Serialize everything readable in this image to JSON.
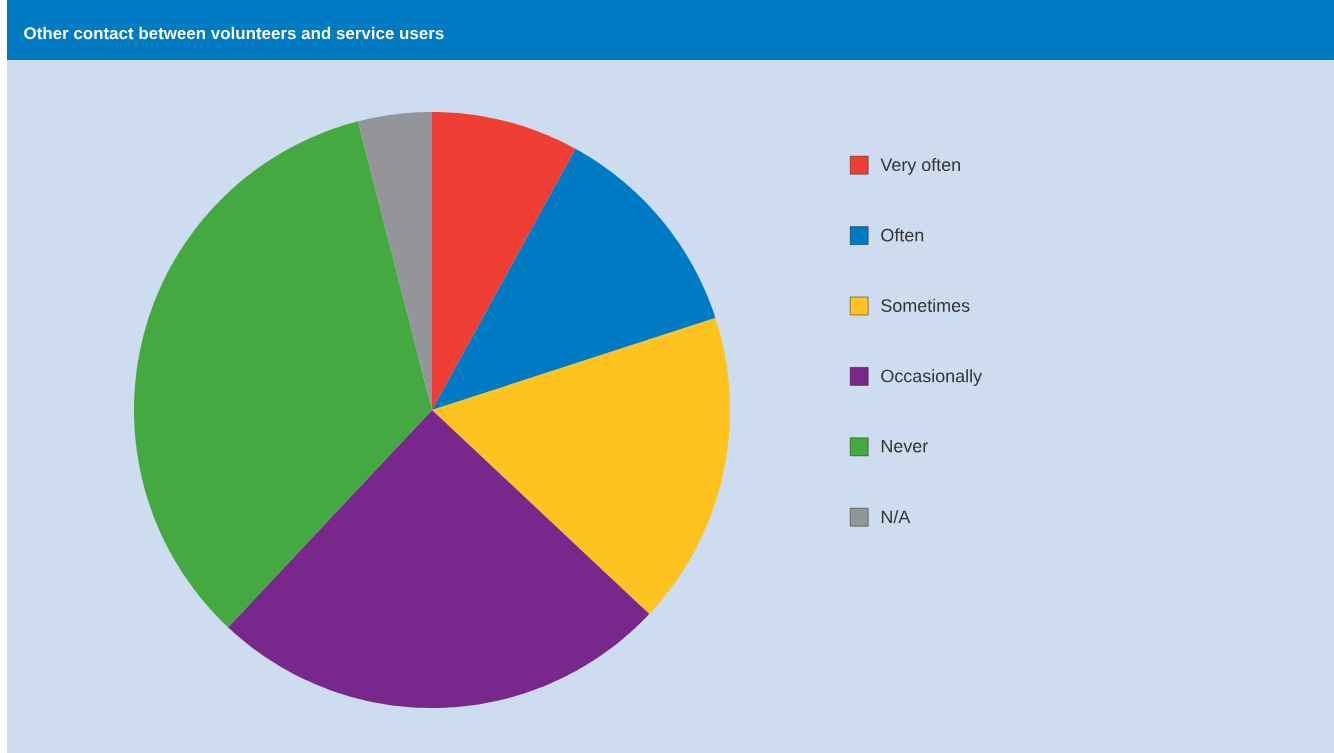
{
  "chart_data": {
    "type": "pie",
    "title": "Other contact between volunteers and service users",
    "categories": [
      "Very often",
      "Often",
      "Sometimes",
      "Occasionally",
      "Never",
      "N/A"
    ],
    "values": [
      8,
      12,
      17,
      25,
      34,
      4
    ],
    "colors": [
      "#ef3e33",
      "#007ac3",
      "#fec221",
      "#78278b",
      "#45a942",
      "#939598"
    ],
    "legend": "right"
  }
}
